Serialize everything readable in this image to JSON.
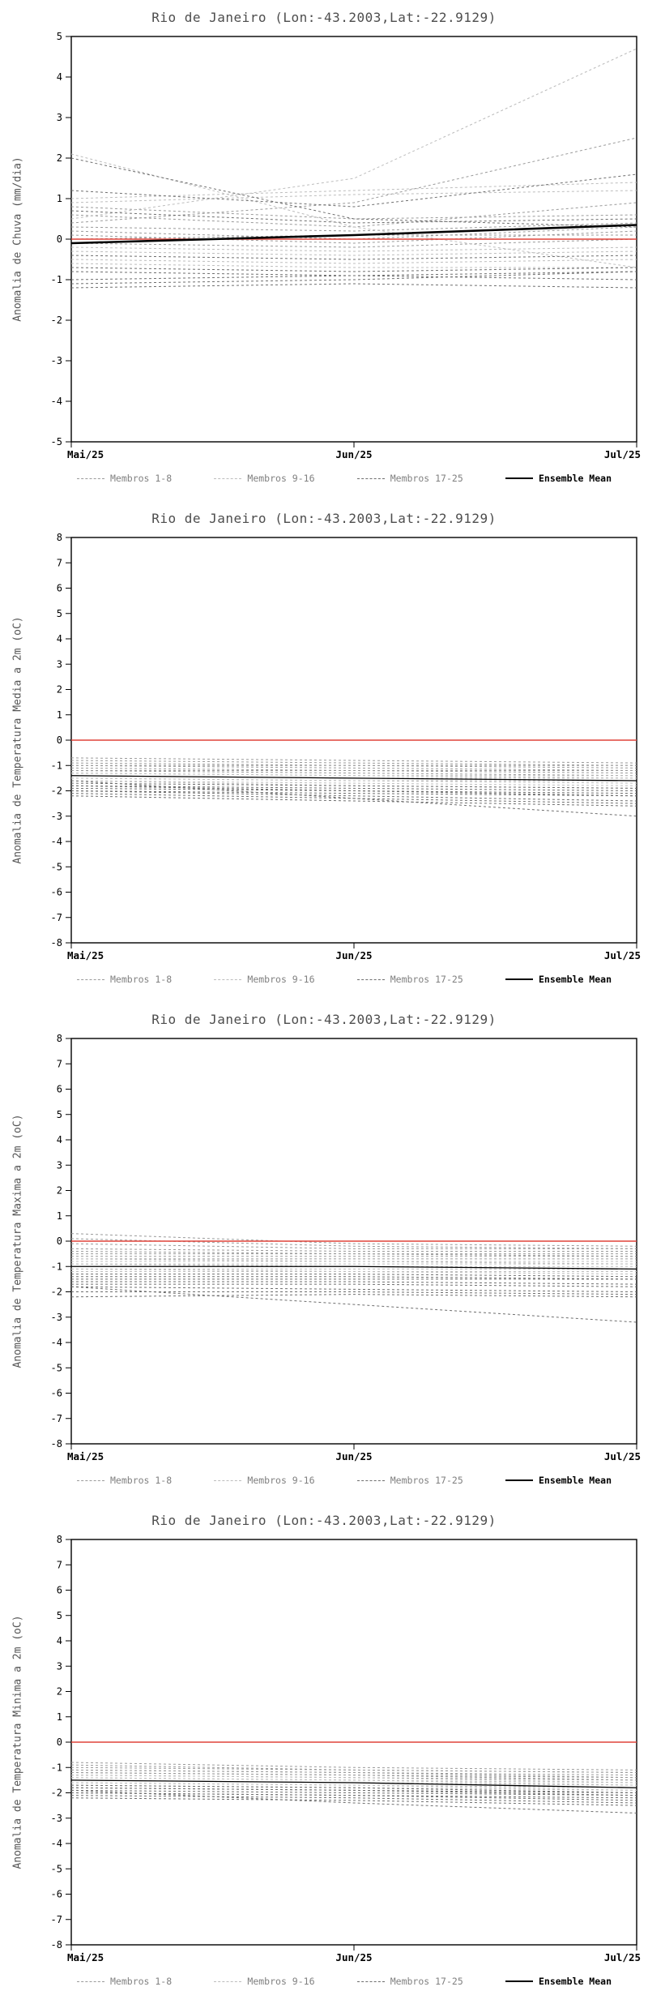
{
  "page": {
    "background": "#ffffff"
  },
  "chart_data": [
    {
      "type": "line",
      "title": "Rio de Janeiro (Lon:-43.2003,Lat:-22.9129)",
      "ylabel": "Anomalia de Chuva (mm/dia)",
      "x_tick_labels": [
        "Mai/25",
        "Jun/25",
        "Jul/25"
      ],
      "ylim": [
        -5,
        5
      ],
      "ytick_step": 1,
      "grid": false,
      "legend_position": "bottom",
      "zero_line": {
        "color": "#e0433a",
        "values": [
          0,
          0,
          0
        ]
      },
      "ensemble_mean": {
        "label": "Ensemble Mean",
        "color": "#000000",
        "width": 2.6,
        "values": [
          -0.1,
          0.1,
          0.35
        ]
      },
      "member_groups": [
        {
          "label": "Membros 1-8",
          "color": "#9a9a9a",
          "series": [
            [
              0.8,
              0.5,
              0.6
            ],
            [
              0.6,
              0.3,
              0.9
            ],
            [
              0.4,
              0.9,
              2.5
            ],
            [
              0.3,
              0.2,
              0.4
            ],
            [
              0.2,
              0.0,
              0.3
            ],
            [
              0.1,
              -0.1,
              0.2
            ],
            [
              0.0,
              0.1,
              0.1
            ],
            [
              -0.1,
              -0.2,
              0.0
            ]
          ]
        },
        {
          "label": "Membros 9-16",
          "color": "#bdbdbd",
          "series": [
            [
              2.1,
              0.3,
              -0.7
            ],
            [
              1.0,
              1.2,
              1.4
            ],
            [
              0.9,
              1.1,
              1.2
            ],
            [
              0.5,
              1.5,
              4.7
            ],
            [
              -0.2,
              -0.3,
              -0.2
            ],
            [
              -0.3,
              -0.4,
              -0.3
            ],
            [
              -0.5,
              -0.6,
              -0.5
            ],
            [
              -0.6,
              -0.7,
              -0.7
            ]
          ]
        },
        {
          "label": "Membros 17-25",
          "color": "#6e6e6e",
          "series": [
            [
              2.0,
              0.5,
              0.3
            ],
            [
              1.2,
              0.8,
              1.6
            ],
            [
              0.7,
              0.4,
              0.5
            ],
            [
              -0.4,
              -0.5,
              -0.4
            ],
            [
              -0.7,
              -0.8,
              -0.7
            ],
            [
              -0.8,
              -0.9,
              -0.8
            ],
            [
              -1.0,
              -0.9,
              -1.0
            ],
            [
              -1.1,
              -1.0,
              -0.8
            ],
            [
              -1.2,
              -1.1,
              -1.2
            ]
          ]
        }
      ]
    },
    {
      "type": "line",
      "title": "Rio de Janeiro (Lon:-43.2003,Lat:-22.9129)",
      "ylabel": "Anomalia de Temperatura Media a 2m (oC)",
      "x_tick_labels": [
        "Mai/25",
        "Jun/25",
        "Jul/25"
      ],
      "ylim": [
        -8,
        8
      ],
      "ytick_step": 1,
      "grid": false,
      "legend_position": "bottom",
      "zero_line": {
        "color": "#e0433a",
        "values": [
          0,
          0,
          0
        ]
      },
      "ensemble_mean": {
        "label": "Ensemble Mean",
        "color": "#000000",
        "width": 1.3,
        "values": [
          -1.4,
          -1.5,
          -1.6
        ]
      },
      "member_groups": [
        {
          "label": "Membros 1-8",
          "color": "#9a9a9a",
          "series": [
            [
              -0.7,
              -0.8,
              -0.9
            ],
            [
              -0.8,
              -0.9,
              -1.0
            ],
            [
              -0.9,
              -1.0,
              -1.0
            ],
            [
              -1.0,
              -1.0,
              -1.1
            ],
            [
              -1.0,
              -1.1,
              -1.2
            ],
            [
              -1.1,
              -1.2,
              -1.2
            ],
            [
              -1.2,
              -1.2,
              -1.3
            ],
            [
              -1.2,
              -1.3,
              -1.4
            ]
          ]
        },
        {
          "label": "Membros 9-16",
          "color": "#bdbdbd",
          "series": [
            [
              -1.3,
              -1.4,
              -1.4
            ],
            [
              -1.3,
              -1.4,
              -1.5
            ],
            [
              -1.4,
              -1.5,
              -1.5
            ],
            [
              -1.4,
              -1.5,
              -1.6
            ],
            [
              -1.5,
              -1.6,
              -1.6
            ],
            [
              -1.5,
              -1.6,
              -1.7
            ],
            [
              -1.6,
              -1.7,
              -1.8
            ],
            [
              -1.6,
              -1.8,
              -1.9
            ]
          ]
        },
        {
          "label": "Membros 17-25",
          "color": "#6e6e6e",
          "series": [
            [
              -1.7,
              -1.8,
              -1.9
            ],
            [
              -1.8,
              -1.9,
              -2.0
            ],
            [
              -1.8,
              -2.0,
              -2.1
            ],
            [
              -1.9,
              -2.0,
              -2.2
            ],
            [
              -2.0,
              -2.1,
              -2.2
            ],
            [
              -2.0,
              -2.2,
              -2.4
            ],
            [
              -2.1,
              -2.3,
              -2.5
            ],
            [
              -2.2,
              -2.4,
              -2.6
            ],
            [
              -1.6,
              -2.3,
              -3.0
            ]
          ]
        }
      ]
    },
    {
      "type": "line",
      "title": "Rio de Janeiro (Lon:-43.2003,Lat:-22.9129)",
      "ylabel": "Anomalia de Temperatura Maxima a 2m (oC)",
      "x_tick_labels": [
        "Mai/25",
        "Jun/25",
        "Jul/25"
      ],
      "ylim": [
        -8,
        8
      ],
      "ytick_step": 1,
      "grid": false,
      "legend_position": "bottom",
      "zero_line": {
        "color": "#e0433a",
        "values": [
          0,
          0,
          0
        ]
      },
      "ensemble_mean": {
        "label": "Ensemble Mean",
        "color": "#000000",
        "width": 1.3,
        "values": [
          -1.0,
          -1.0,
          -1.1
        ]
      },
      "member_groups": [
        {
          "label": "Membros 1-8",
          "color": "#9a9a9a",
          "series": [
            [
              0.3,
              -0.1,
              -0.2
            ],
            [
              0.1,
              -0.2,
              -0.3
            ],
            [
              -0.1,
              -0.3,
              -0.3
            ],
            [
              -0.3,
              -0.4,
              -0.4
            ],
            [
              -0.4,
              -0.5,
              -0.5
            ],
            [
              -0.5,
              -0.5,
              -0.6
            ],
            [
              -0.6,
              -0.6,
              -0.6
            ],
            [
              -0.7,
              -0.7,
              -0.7
            ]
          ]
        },
        {
          "label": "Membros 9-16",
          "color": "#bdbdbd",
          "series": [
            [
              -0.7,
              -0.8,
              -0.8
            ],
            [
              -0.8,
              -0.8,
              -0.9
            ],
            [
              -0.9,
              -0.9,
              -0.9
            ],
            [
              -0.9,
              -1.0,
              -1.0
            ],
            [
              -1.0,
              -1.0,
              -1.1
            ],
            [
              -1.1,
              -1.1,
              -1.1
            ],
            [
              -1.1,
              -1.2,
              -1.2
            ],
            [
              -1.2,
              -1.2,
              -1.3
            ]
          ]
        },
        {
          "label": "Membros 17-25",
          "color": "#6e6e6e",
          "series": [
            [
              -1.3,
              -1.3,
              -1.4
            ],
            [
              -1.4,
              -1.4,
              -1.5
            ],
            [
              -1.5,
              -1.5,
              -1.5
            ],
            [
              -1.6,
              -1.6,
              -1.7
            ],
            [
              -1.7,
              -1.7,
              -1.8
            ],
            [
              -1.8,
              -1.9,
              -2.0
            ],
            [
              -2.0,
              -2.0,
              -2.1
            ],
            [
              -2.2,
              -2.1,
              -2.2
            ],
            [
              -1.8,
              -2.5,
              -3.2
            ]
          ]
        }
      ]
    },
    {
      "type": "line",
      "title": "Rio de Janeiro (Lon:-43.2003,Lat:-22.9129)",
      "ylabel": "Anomalia de Temperatura Minima a 2m (oC)",
      "x_tick_labels": [
        "Mai/25",
        "Jun/25",
        "Jul/25"
      ],
      "ylim": [
        -8,
        8
      ],
      "ytick_step": 1,
      "grid": false,
      "legend_position": "bottom",
      "zero_line": {
        "color": "#e0433a",
        "values": [
          0,
          0,
          0
        ]
      },
      "ensemble_mean": {
        "label": "Ensemble Mean",
        "color": "#000000",
        "width": 1.3,
        "values": [
          -1.5,
          -1.6,
          -1.8
        ]
      },
      "member_groups": [
        {
          "label": "Membros 1-8",
          "color": "#9a9a9a",
          "series": [
            [
              -0.8,
              -1.0,
              -1.1
            ],
            [
              -0.9,
              -1.1,
              -1.2
            ],
            [
              -1.0,
              -1.1,
              -1.2
            ],
            [
              -1.1,
              -1.2,
              -1.3
            ],
            [
              -1.1,
              -1.2,
              -1.4
            ],
            [
              -1.2,
              -1.3,
              -1.4
            ],
            [
              -1.2,
              -1.3,
              -1.5
            ],
            [
              -1.3,
              -1.4,
              -1.5
            ]
          ]
        },
        {
          "label": "Membros 9-16",
          "color": "#bdbdbd",
          "series": [
            [
              -1.3,
              -1.4,
              -1.6
            ],
            [
              -1.4,
              -1.5,
              -1.6
            ],
            [
              -1.4,
              -1.5,
              -1.7
            ],
            [
              -1.5,
              -1.6,
              -1.7
            ],
            [
              -1.5,
              -1.6,
              -1.8
            ],
            [
              -1.6,
              -1.7,
              -1.8
            ],
            [
              -1.6,
              -1.7,
              -1.9
            ],
            [
              -1.7,
              -1.8,
              -1.9
            ]
          ]
        },
        {
          "label": "Membros 17-25",
          "color": "#6e6e6e",
          "series": [
            [
              -1.7,
              -1.8,
              -2.0
            ],
            [
              -1.8,
              -1.9,
              -2.0
            ],
            [
              -1.8,
              -1.9,
              -2.1
            ],
            [
              -1.9,
              -2.0,
              -2.1
            ],
            [
              -2.0,
              -2.1,
              -2.2
            ],
            [
              -2.0,
              -2.1,
              -2.3
            ],
            [
              -2.1,
              -2.2,
              -2.4
            ],
            [
              -2.2,
              -2.3,
              -2.5
            ],
            [
              -1.9,
              -2.4,
              -2.8
            ]
          ]
        }
      ]
    }
  ]
}
